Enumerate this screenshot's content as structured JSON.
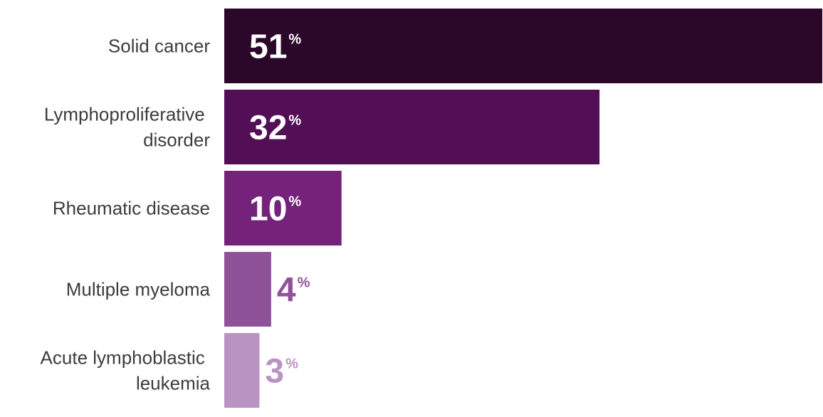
{
  "chart_data": {
    "type": "bar",
    "orientation": "horizontal",
    "categories": [
      "Solid cancer",
      "Lymphoproliferative disorder",
      "Rheumatic disease",
      "Multiple myeloma",
      "Acute lymphoblastic leukemia"
    ],
    "values": [
      51,
      32,
      10,
      4,
      3
    ],
    "value_labels": [
      "51%",
      "32%",
      "10%",
      "4%",
      "3%"
    ],
    "colors": [
      "#2b0829",
      "#520f55",
      "#75227a",
      "#8e5298",
      "#b993c2"
    ]
  }
}
